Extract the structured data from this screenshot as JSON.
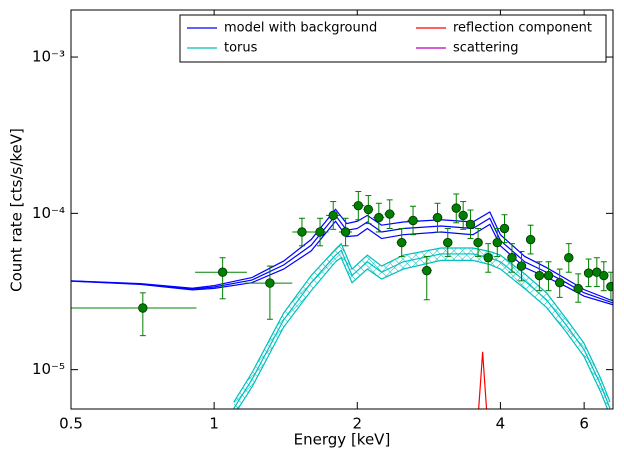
{
  "chart_data": {
    "type": "line",
    "xlabel": "Energy [keV]",
    "ylabel": "Count rate [cts/s/keV]",
    "xscale": "log",
    "yscale": "log",
    "xlim": [
      0.5,
      6.9
    ],
    "ylim": [
      5.6e-06,
      0.002
    ],
    "xticks": [
      0.5,
      1,
      2,
      4,
      6
    ],
    "yticks": [
      {
        "value": 1e-05,
        "label": "10⁻⁵"
      },
      {
        "value": 0.0001,
        "label": "10⁻⁴"
      },
      {
        "value": 0.001,
        "label": "10⁻³"
      }
    ],
    "legend": "upper right",
    "legend_columns": 2,
    "series": [
      {
        "name": "model with background",
        "color": "#0000ff",
        "x": [
          0.5,
          0.7,
          0.9,
          1.0,
          1.2,
          1.4,
          1.6,
          1.8,
          1.9,
          2.0,
          2.1,
          2.25,
          2.5,
          3.0,
          3.5,
          3.8,
          4.0,
          4.5,
          5.0,
          5.5,
          6.0,
          6.9
        ],
        "values": [
          3.69e-05,
          3.53e-05,
          3.28e-05,
          3.38e-05,
          3.74e-05,
          4.67e-05,
          6.25e-05,
          9.7e-05,
          7.8e-05,
          8e-05,
          8.8e-05,
          7.6e-05,
          8e-05,
          8.3e-05,
          8e-05,
          9.3e-05,
          6.7e-05,
          4.9e-05,
          4.2e-05,
          3.6e-05,
          3.1e-05,
          2.67e-05
        ],
        "upper": [
          3.7e-05,
          3.55e-05,
          3.32e-05,
          3.45e-05,
          3.88e-05,
          4.95e-05,
          6.8e-05,
          0.000106,
          8.6e-05,
          8.9e-05,
          9.7e-05,
          8.4e-05,
          8.8e-05,
          9.1e-05,
          8.8e-05,
          0.000102,
          7.3e-05,
          5.3e-05,
          4.5e-05,
          3.8e-05,
          3.25e-05,
          2.75e-05
        ],
        "lower": [
          3.68e-05,
          3.51e-05,
          3.24e-05,
          3.31e-05,
          3.6e-05,
          4.4e-05,
          5.75e-05,
          8.9e-05,
          7.1e-05,
          7.2e-05,
          8e-05,
          6.9e-05,
          7.3e-05,
          7.6e-05,
          7.3e-05,
          8.5e-05,
          6.2e-05,
          4.5e-05,
          3.9e-05,
          3.4e-05,
          2.95e-05,
          2.6e-05
        ]
      },
      {
        "name": "torus",
        "color": "#00bfbf",
        "x": [
          1.1,
          1.2,
          1.4,
          1.6,
          1.8,
          1.85,
          1.95,
          2.1,
          2.25,
          2.5,
          3.0,
          3.5,
          3.8,
          4.0,
          4.5,
          5.0,
          5.5,
          6.0,
          6.5,
          6.8
        ],
        "values": [
          5.65e-06,
          8.6e-06,
          2.08e-05,
          3.6e-05,
          5.4e-05,
          5.8e-05,
          4e-05,
          4.9e-05,
          4.2e-05,
          4.9e-05,
          5.5e-05,
          5.5e-05,
          5.2e-05,
          4.9e-05,
          3.7e-05,
          2.8e-05,
          1.93e-05,
          1.34e-05,
          8e-06,
          5.65e-06
        ],
        "upper": [
          6.2e-06,
          9.5e-06,
          2.3e-05,
          4e-05,
          5.9e-05,
          6.4e-05,
          4.4e-05,
          5.4e-05,
          4.6e-05,
          5.4e-05,
          6e-05,
          6e-05,
          5.7e-05,
          5.4e-05,
          4.1e-05,
          3.1e-05,
          2.12e-05,
          1.47e-05,
          8.8e-06,
          6.2e-06
        ],
        "lower": [
          5.1e-06,
          7.7e-06,
          1.87e-05,
          3.2e-05,
          4.9e-05,
          5.2e-05,
          3.6e-05,
          4.4e-05,
          3.8e-05,
          4.4e-05,
          5e-05,
          5e-05,
          4.7e-05,
          4.4e-05,
          3.3e-05,
          2.5e-05,
          1.74e-05,
          1.21e-05,
          7.2e-06,
          5.1e-06
        ]
      },
      {
        "name": "reflection component",
        "color": "#ff0000",
        "x": [
          3.6,
          3.64,
          3.67,
          3.7,
          3.74
        ],
        "values": [
          5.6e-06,
          9e-06,
          1.3e-05,
          9e-06,
          5.6e-06
        ]
      },
      {
        "name": "scattering",
        "color": "#bf00bf"
      }
    ],
    "points": {
      "color": "#008000",
      "x": [
        0.708,
        1.042,
        1.31,
        1.53,
        1.67,
        1.78,
        1.89,
        2.01,
        2.11,
        2.22,
        2.34,
        2.48,
        2.62,
        2.8,
        2.95,
        3.1,
        3.23,
        3.34,
        3.46,
        3.59,
        3.77,
        3.94,
        4.08,
        4.23,
        4.43,
        4.63,
        4.83,
        5.05,
        5.33,
        5.57,
        5.83,
        6.13,
        6.38,
        6.6,
        6.83
      ],
      "y": [
        2.48e-05,
        4.2e-05,
        3.58e-05,
        7.6e-05,
        7.6e-05,
        9.7e-05,
        7.6e-05,
        0.000112,
        0.000106,
        9.4e-05,
        9.9e-05,
        6.5e-05,
        9e-05,
        4.3e-05,
        9.4e-05,
        6.5e-05,
        0.000108,
        9.7e-05,
        8.5e-05,
        6.5e-05,
        5.2e-05,
        6.5e-05,
        8e-05,
        5.2e-05,
        4.6e-05,
        6.8e-05,
        4e-05,
        4e-05,
        3.6e-05,
        5.2e-05,
        3.3e-05,
        4.15e-05,
        4.2e-05,
        4e-05,
        3.4e-05
      ],
      "xerr": [
        0.21,
        0.13,
        0.15,
        0.07,
        0.07,
        0.06,
        0.06,
        0.06,
        0.05,
        0.06,
        0.06,
        0.06,
        0.07,
        0.07,
        0.07,
        0.07,
        0.06,
        0.06,
        0.06,
        0.07,
        0.08,
        0.08,
        0.08,
        0.08,
        0.09,
        0.1,
        0.1,
        0.11,
        0.12,
        0.12,
        0.13,
        0.13,
        0.13,
        0.13,
        0.13
      ],
      "ylow": [
        1.65e-05,
        2.84e-05,
        2.1e-05,
        6.2e-05,
        6.2e-05,
        7.9e-05,
        6.2e-05,
        9.1e-05,
        8.6e-05,
        7.6e-05,
        8e-05,
        5.3e-05,
        7.3e-05,
        2.8e-05,
        7.6e-05,
        5.3e-05,
        8.7e-05,
        7.9e-05,
        6.9e-05,
        5.3e-05,
        4.2e-05,
        5.3e-05,
        6.5e-05,
        4.2e-05,
        3.7e-05,
        5.5e-05,
        3.2e-05,
        3.2e-05,
        2.9e-05,
        4.2e-05,
        2.7e-05,
        3.4e-05,
        3.4e-05,
        3.2e-05,
        2.8e-05
      ],
      "yhigh": [
        3.1e-05,
        5.2e-05,
        4.6e-05,
        9.3e-05,
        9.3e-05,
        0.000119,
        9.3e-05,
        0.000138,
        0.00013,
        0.000116,
        0.000122,
        8e-05,
        0.000111,
        5.3e-05,
        0.000116,
        8e-05,
        0.000133,
        0.000119,
        0.000105,
        8e-05,
        6.4e-05,
        8e-05,
        9.8e-05,
        6.4e-05,
        5.7e-05,
        8.4e-05,
        4.9e-05,
        4.9e-05,
        4.4e-05,
        6.4e-05,
        4.1e-05,
        5.1e-05,
        5.2e-05,
        4.9e-05,
        4.2e-05
      ]
    }
  }
}
